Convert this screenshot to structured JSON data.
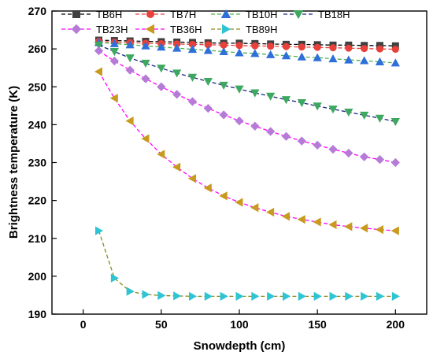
{
  "chart_data": {
    "type": "line",
    "xlabel": "Snowdepth (cm)",
    "ylabel": "Brightness temperature (K)",
    "xlim": [
      -20,
      220
    ],
    "ylim": [
      190,
      270
    ],
    "xticks": [
      0,
      50,
      100,
      150,
      200
    ],
    "yticks": [
      190,
      200,
      210,
      220,
      230,
      240,
      250,
      260,
      270
    ],
    "legend_position": "top",
    "x": [
      10,
      20,
      30,
      40,
      50,
      60,
      70,
      80,
      90,
      100,
      110,
      120,
      130,
      140,
      150,
      160,
      170,
      180,
      190,
      200
    ],
    "series": [
      {
        "name": "TB6H",
        "marker": "square",
        "color": "#404040",
        "line_color": "#000000",
        "values": [
          262.3,
          262.2,
          262.1,
          262.0,
          261.9,
          261.8,
          261.7,
          261.6,
          261.5,
          261.5,
          261.4,
          261.3,
          261.2,
          261.2,
          261.1,
          261.0,
          261.0,
          260.9,
          260.9,
          260.8
        ]
      },
      {
        "name": "TB7H",
        "marker": "circle",
        "color": "#e8403a",
        "line_color": "#e8403a",
        "values": [
          262.0,
          261.8,
          261.7,
          261.5,
          261.4,
          261.3,
          261.2,
          261.1,
          261.0,
          260.9,
          260.8,
          260.7,
          260.6,
          260.5,
          260.4,
          260.3,
          260.2,
          260.1,
          260.0,
          259.9
        ]
      },
      {
        "name": "TB10H",
        "marker": "triangle-up",
        "color": "#2e6fd9",
        "line_color": "#4cb050",
        "values": [
          261.7,
          261.4,
          261.1,
          260.8,
          260.5,
          260.2,
          259.9,
          259.6,
          259.3,
          259.0,
          258.8,
          258.5,
          258.2,
          257.9,
          257.7,
          257.4,
          257.1,
          256.9,
          256.6,
          256.3
        ]
      },
      {
        "name": "TB18H",
        "marker": "triangle-down",
        "color": "#3da860",
        "line_color": "#1a237e",
        "values": [
          261.0,
          259.3,
          257.6,
          256.2,
          254.9,
          253.6,
          252.5,
          251.4,
          250.4,
          249.4,
          248.4,
          247.5,
          246.6,
          245.8,
          244.9,
          244.1,
          243.3,
          242.5,
          241.7,
          240.8
        ]
      },
      {
        "name": "TB23H",
        "marker": "diamond",
        "color": "#b57bd6",
        "line_color": "#ff00ff",
        "values": [
          259.5,
          256.8,
          254.4,
          252.1,
          250.0,
          248.0,
          246.1,
          244.3,
          242.6,
          241.0,
          239.6,
          238.2,
          236.9,
          235.7,
          234.6,
          233.5,
          232.5,
          231.5,
          230.8,
          230.0
        ]
      },
      {
        "name": "TB36H",
        "marker": "triangle-left",
        "color": "#c89a1e",
        "line_color": "#ff00ff",
        "values": [
          254.0,
          247.0,
          241.0,
          236.3,
          232.2,
          228.8,
          225.8,
          223.3,
          221.2,
          219.5,
          218.1,
          216.9,
          215.8,
          215.0,
          214.3,
          213.6,
          213.1,
          212.7,
          212.3,
          212.0
        ]
      },
      {
        "name": "TB89H",
        "marker": "triangle-right",
        "color": "#2ec4d4",
        "line_color": "#8a8a1a",
        "values": [
          212.0,
          199.5,
          196.0,
          195.2,
          194.9,
          194.8,
          194.7,
          194.7,
          194.7,
          194.7,
          194.7,
          194.7,
          194.7,
          194.7,
          194.7,
          194.7,
          194.7,
          194.7,
          194.7,
          194.7
        ]
      }
    ]
  }
}
